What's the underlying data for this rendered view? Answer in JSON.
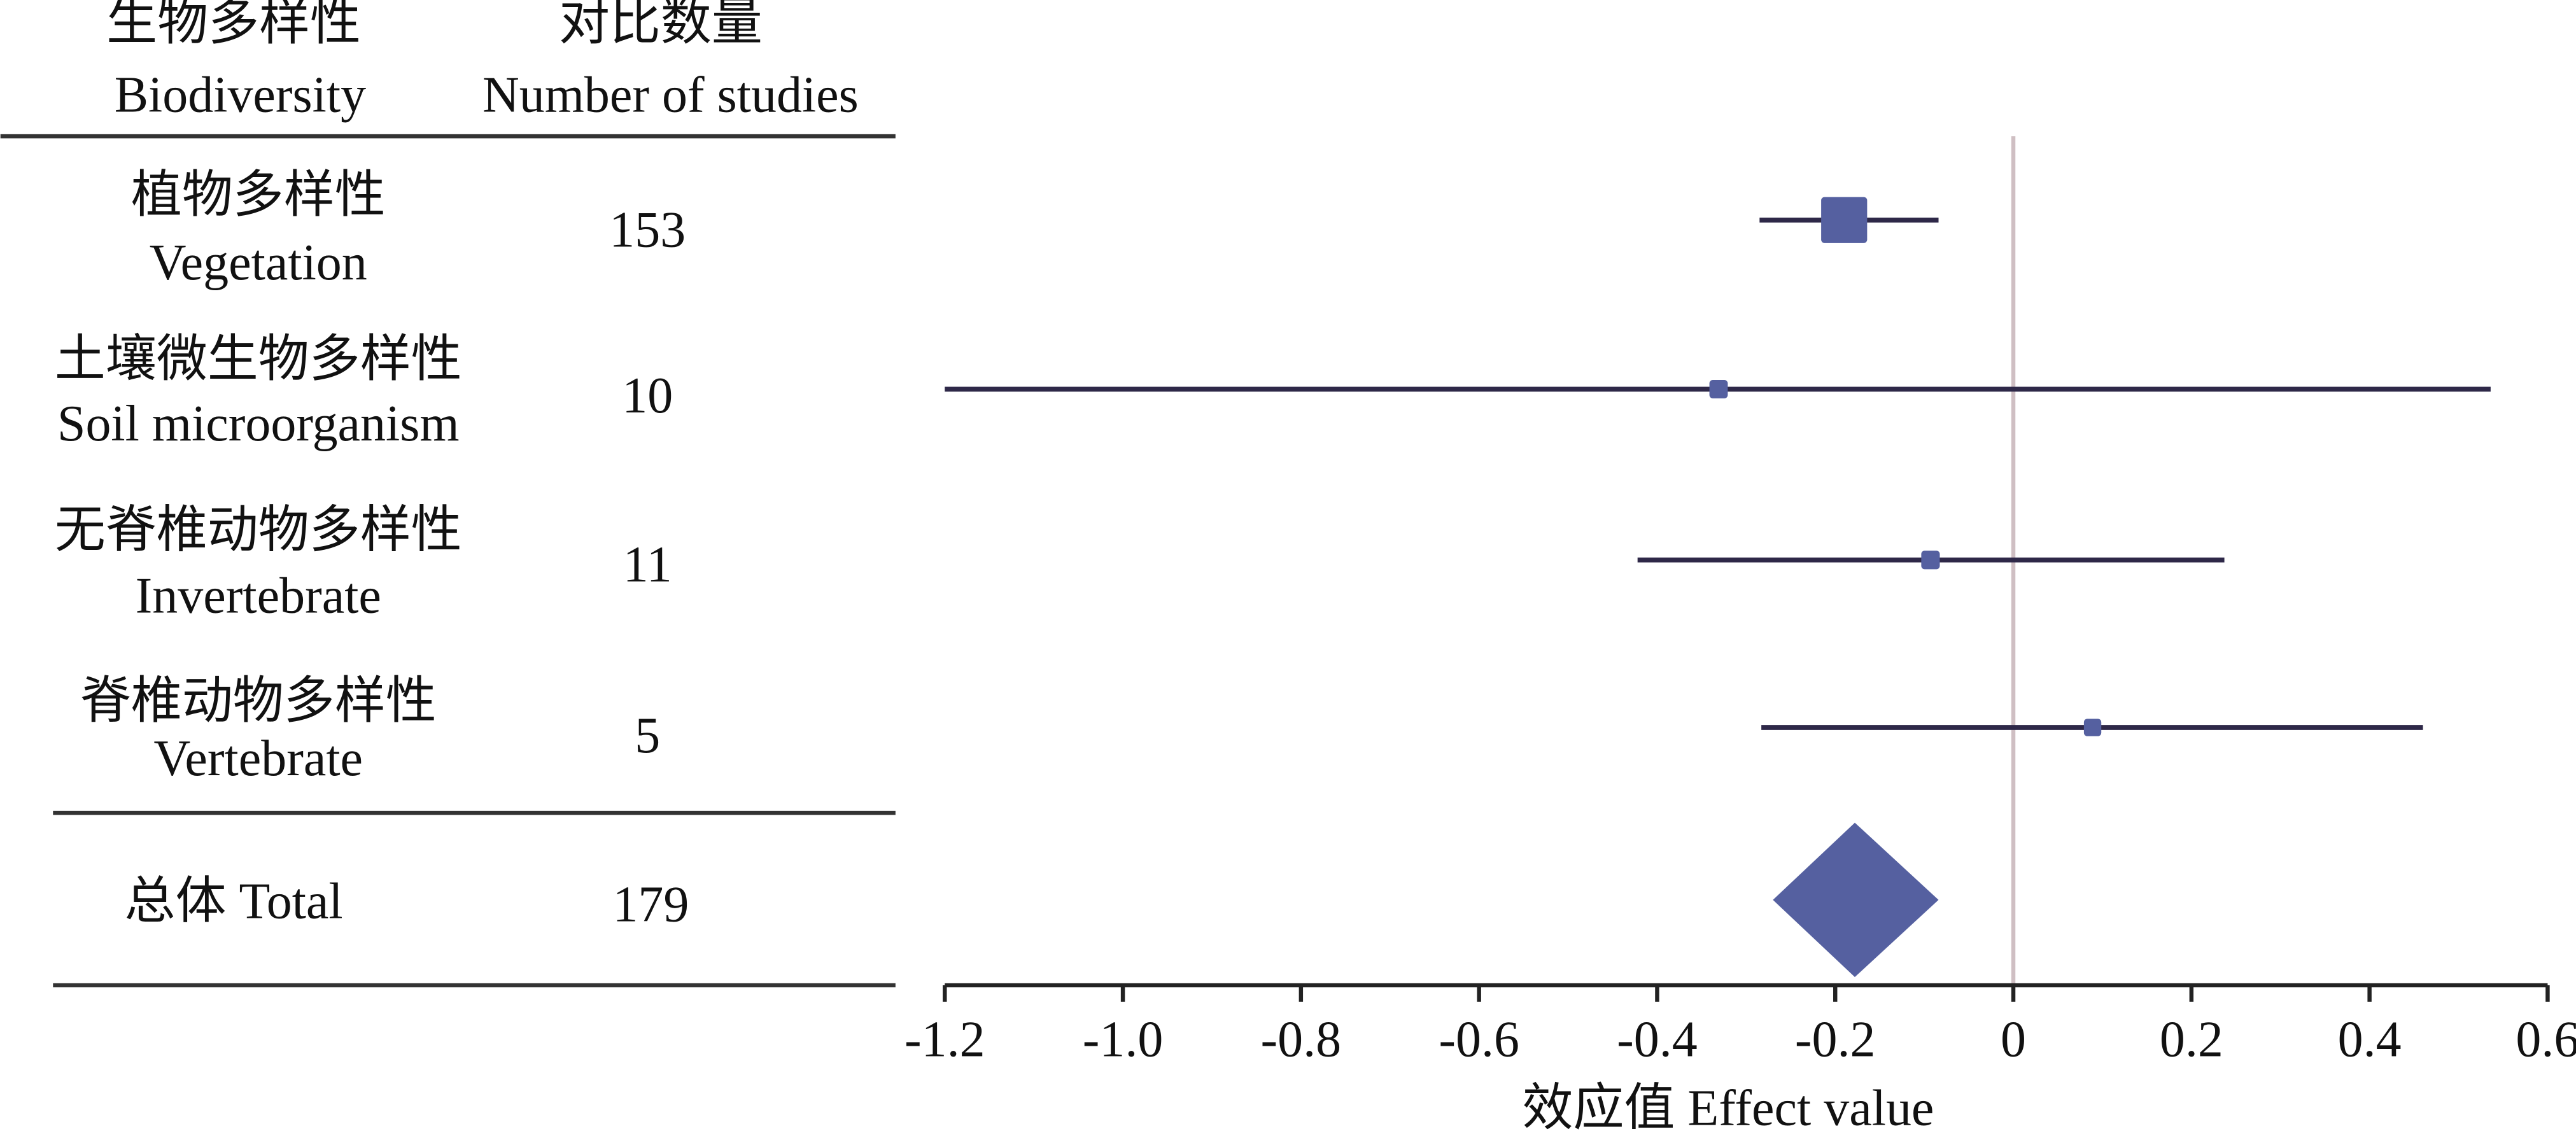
{
  "chart_data": {
    "type": "forest",
    "headers": {
      "label": [
        "生物多样性",
        "Biodiversity"
      ],
      "count": [
        "对比数量",
        "Number of studies"
      ]
    },
    "rows": [
      {
        "name_cn": "植物多样性",
        "name_en": "Vegetation",
        "n": 153,
        "estimate": -0.19,
        "lower": -0.285,
        "upper": -0.084
      },
      {
        "name_cn": "土壤微生物多样性",
        "name_en": "Soil microorganism",
        "n": 10,
        "estimate": -0.331,
        "lower": -1.2,
        "upper": 0.536
      },
      {
        "name_cn": "无脊椎动物多样性",
        "name_en": "Invertebrate",
        "n": 11,
        "estimate": -0.093,
        "lower": -0.422,
        "upper": 0.237
      },
      {
        "name_cn": "脊椎动物多样性",
        "name_en": "Vertebrate",
        "n": 5,
        "estimate": 0.089,
        "lower": -0.283,
        "upper": 0.46
      }
    ],
    "total": {
      "label": "总体 Total",
      "n": 179,
      "estimate": -0.178,
      "lower": -0.27,
      "upper": -0.084
    },
    "xlabel": "效应值 Effect value",
    "xlim": [
      -1.2,
      0.6
    ],
    "xticks": [
      -1.2,
      {
        "value": -1.0,
        "label": "-1.0"
      },
      -0.8,
      -0.6,
      -0.4,
      -0.2,
      0,
      0.2,
      0.4,
      0.6
    ],
    "ref_line": 0,
    "color": "#5560a0",
    "line_color": "#2e2848",
    "ref_color": "#cfbfc3"
  }
}
